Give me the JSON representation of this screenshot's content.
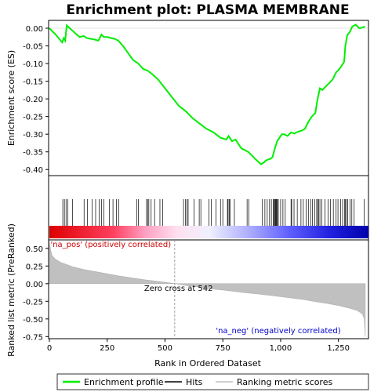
{
  "chart_data": {
    "type": "line",
    "title": "Enrichment plot: PLASMA MEMBRANE",
    "top_panel": {
      "ylabel": "Enrichment score (ES)",
      "ylim": [
        -0.415,
        0.02
      ],
      "yticks": [
        0.0,
        -0.05,
        -0.1,
        -0.15,
        -0.2,
        -0.25,
        -0.3,
        -0.35,
        -0.4
      ],
      "ytick_labels": [
        "0.00",
        "-0.05",
        "-0.10",
        "-0.15",
        "-0.20",
        "-0.25",
        "-0.30",
        "-0.35",
        "-0.40"
      ],
      "series": [
        {
          "name": "Enrichment profile",
          "color": "#00ee00",
          "x": [
            0,
            30,
            55,
            62,
            68,
            75,
            88,
            102,
            118,
            132,
            148,
            162,
            178,
            195,
            212,
            225,
            236,
            252,
            268,
            282,
            298,
            318,
            340,
            362,
            385,
            405,
            425,
            445,
            470,
            500,
            530,
            560,
            590,
            620,
            650,
            680,
            710,
            740,
            765,
            775,
            790,
            805,
            830,
            860,
            890,
            915,
            928,
            935,
            945,
            955,
            965,
            975,
            985,
            995,
            1005,
            1015,
            1030,
            1045,
            1060,
            1075,
            1090,
            1105,
            1120,
            1135,
            1150,
            1160,
            1170,
            1180,
            1195,
            1210,
            1225,
            1240,
            1255,
            1265,
            1275,
            1280,
            1288,
            1300,
            1310,
            1325,
            1340,
            1355,
            1365
          ],
          "y": [
            0.0,
            -0.02,
            -0.04,
            -0.028,
            -0.035,
            0.008,
            0.0,
            -0.008,
            -0.018,
            -0.025,
            -0.022,
            -0.028,
            -0.03,
            -0.032,
            -0.035,
            -0.018,
            -0.025,
            -0.025,
            -0.028,
            -0.03,
            -0.035,
            -0.05,
            -0.07,
            -0.09,
            -0.1,
            -0.115,
            -0.12,
            -0.13,
            -0.145,
            -0.17,
            -0.195,
            -0.22,
            -0.235,
            -0.255,
            -0.27,
            -0.285,
            -0.295,
            -0.31,
            -0.315,
            -0.305,
            -0.32,
            -0.315,
            -0.34,
            -0.35,
            -0.37,
            -0.385,
            -0.38,
            -0.375,
            -0.372,
            -0.37,
            -0.365,
            -0.34,
            -0.32,
            -0.31,
            -0.3,
            -0.3,
            -0.305,
            -0.295,
            -0.298,
            -0.293,
            -0.29,
            -0.285,
            -0.265,
            -0.25,
            -0.24,
            -0.2,
            -0.17,
            -0.175,
            -0.165,
            -0.155,
            -0.145,
            -0.125,
            -0.115,
            -0.105,
            -0.095,
            -0.05,
            -0.02,
            -0.01,
            0.005,
            0.01,
            0.0,
            0.002,
            0.005
          ]
        }
      ]
    },
    "hits_panel": {
      "hit_positions": [
        58,
        65,
        72,
        80,
        100,
        150,
        165,
        185,
        200,
        215,
        225,
        235,
        260,
        275,
        290,
        300,
        378,
        385,
        420,
        425,
        430,
        440,
        455,
        478,
        490,
        580,
        588,
        595,
        600,
        625,
        648,
        655,
        690,
        700,
        720,
        740,
        750,
        770,
        773,
        778,
        782,
        800,
        855,
        862,
        920,
        932,
        942,
        952,
        960,
        968,
        972,
        975,
        978,
        980,
        983,
        986,
        990,
        1000,
        1010,
        1020,
        1045,
        1048,
        1058,
        1072,
        1088,
        1098,
        1110,
        1120,
        1130,
        1138,
        1148,
        1156,
        1160,
        1165,
        1170,
        1178,
        1192,
        1205,
        1215,
        1228,
        1240,
        1248,
        1260,
        1268,
        1276,
        1280,
        1285,
        1290,
        1300,
        1308,
        1318,
        1362
      ],
      "gradient_colors": [
        "#ff0000",
        "#ffffff",
        "#0000ff"
      ]
    },
    "bottom_panel": {
      "type": "area",
      "xlabel": "Rank in Ordered Dataset",
      "ylabel": "Ranked list metric (PreRanked)",
      "ylim": [
        -0.78,
        0.62
      ],
      "yticks": [
        0.5,
        0.25,
        0.0,
        -0.25,
        -0.5,
        -0.75
      ],
      "ytick_labels": [
        "0.50",
        "0.25",
        "0.00",
        "-0.25",
        "-0.50",
        "-0.75"
      ],
      "series": [
        {
          "name": "Ranking metric scores",
          "color": "#c0c0c0",
          "x": [
            0,
            5,
            12,
            25,
            50,
            100,
            150,
            200,
            250,
            300,
            350,
            400,
            450,
            500,
            542,
            600,
            650,
            700,
            750,
            800,
            850,
            900,
            950,
            1000,
            1050,
            1100,
            1150,
            1200,
            1250,
            1300,
            1330,
            1345,
            1355,
            1362,
            1366
          ],
          "y": [
            0.6,
            0.48,
            0.4,
            0.35,
            0.3,
            0.24,
            0.2,
            0.17,
            0.14,
            0.11,
            0.085,
            0.06,
            0.04,
            0.02,
            0.0,
            -0.03,
            -0.05,
            -0.075,
            -0.09,
            -0.11,
            -0.13,
            -0.145,
            -0.165,
            -0.185,
            -0.205,
            -0.225,
            -0.255,
            -0.28,
            -0.31,
            -0.35,
            -0.38,
            -0.41,
            -0.44,
            -0.5,
            -0.75
          ]
        }
      ],
      "annotations": [
        {
          "text": "'na_pos' (positively correlated)",
          "color": "#cc0000",
          "x": 5,
          "y": 0.52
        },
        {
          "text": "Zero cross at 542",
          "color": "#000000",
          "x": 410,
          "y": -0.1
        },
        {
          "text": "'na_neg' (negatively correlated)",
          "color": "#0000cc",
          "x": 720,
          "y": -0.7
        }
      ],
      "zero_cross": 542
    },
    "xlim": [
      0,
      1380
    ],
    "xticks": [
      0,
      250,
      500,
      750,
      1000,
      1250
    ],
    "xtick_labels": [
      "0",
      "250",
      "500",
      "750",
      "1,000",
      "1,250"
    ],
    "legend": {
      "placement": "bottom",
      "entries": [
        {
          "label": "Enrichment profile",
          "color": "#00ee00",
          "kind": "line"
        },
        {
          "label": "Hits",
          "color": "#000000",
          "kind": "line"
        },
        {
          "label": "Ranking metric scores",
          "color": "#c0c0c0",
          "kind": "line"
        }
      ]
    }
  }
}
